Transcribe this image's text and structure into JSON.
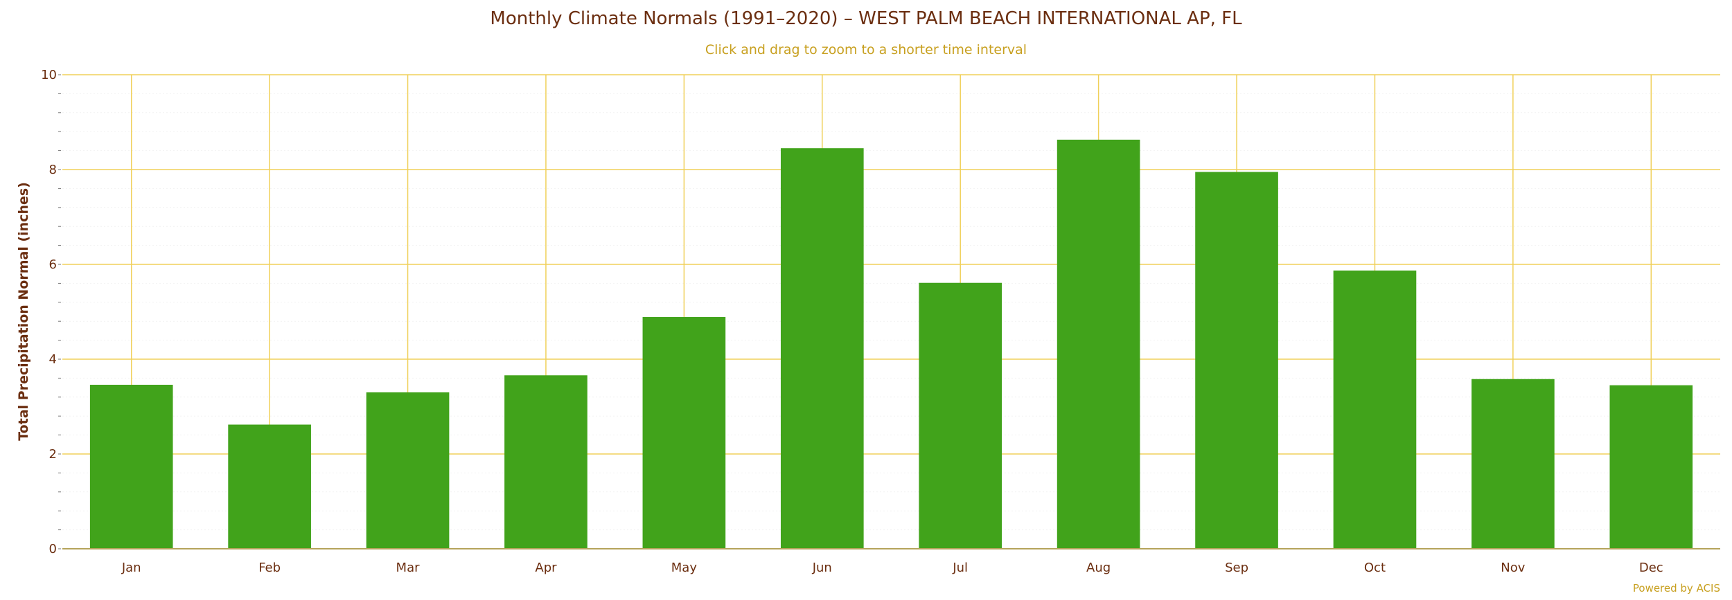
{
  "chart_data": {
    "type": "bar",
    "title": "Monthly Climate Normals (1991–2020) – WEST PALM BEACH INTERNATIONAL AP, FL",
    "subtitle": "Click and drag to zoom to a shorter time interval",
    "ylabel": "Total Precipitation Normal (inches)",
    "xlabel": "",
    "categories": [
      "Jan",
      "Feb",
      "Mar",
      "Apr",
      "May",
      "Jun",
      "Jul",
      "Aug",
      "Sep",
      "Oct",
      "Nov",
      "Dec"
    ],
    "values": [
      3.46,
      2.62,
      3.3,
      3.66,
      4.89,
      8.45,
      5.61,
      8.63,
      7.95,
      5.87,
      3.58,
      3.45
    ],
    "ylim": [
      0,
      10
    ],
    "yticks": [
      "0",
      "2",
      "4",
      "6",
      "8",
      "10"
    ],
    "grid": true,
    "legend": "none",
    "colors": {
      "bar": "#41a31b",
      "grid": "#f0d05a",
      "minor_grid": "#f2f2f2",
      "axis_text": "#6b2e10",
      "subtitle": "#c8a020"
    },
    "credit": "Powered by ACIS"
  }
}
